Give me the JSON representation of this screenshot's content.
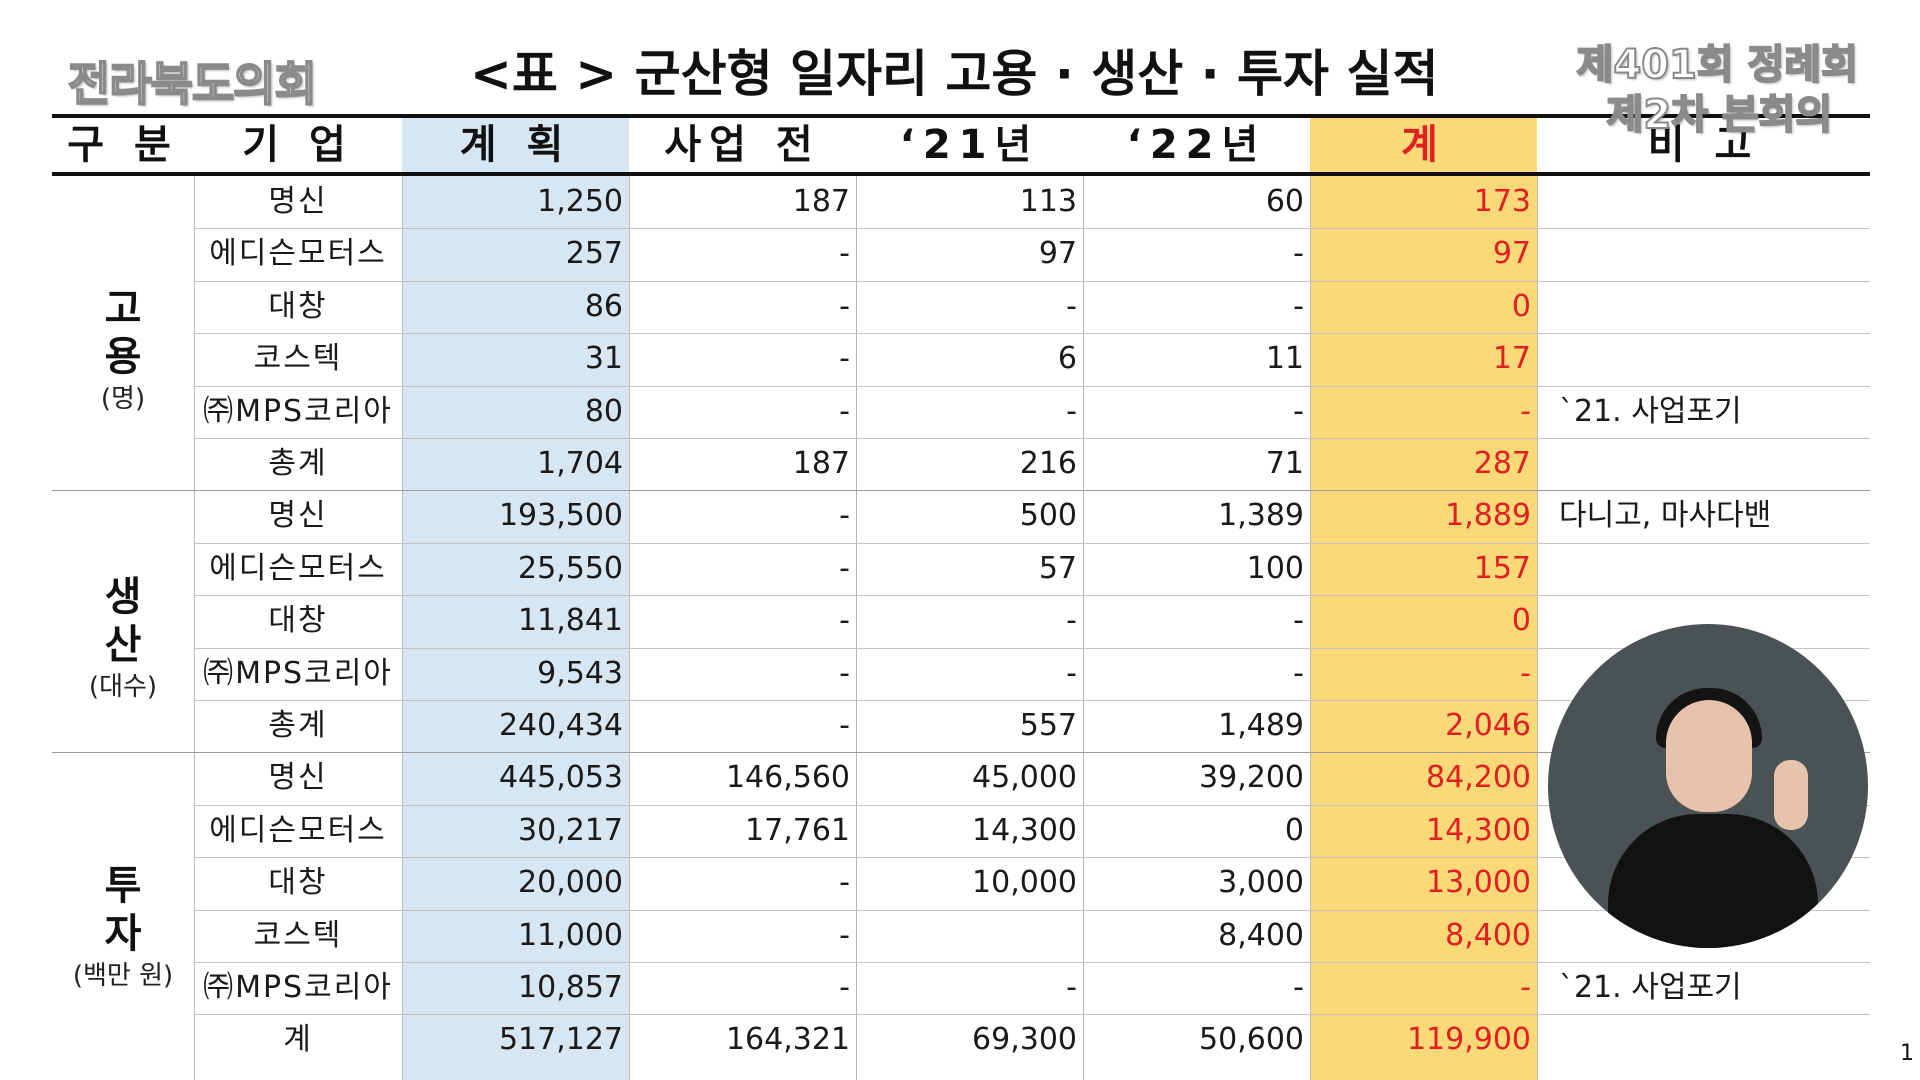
{
  "header": {
    "org_logo": "전라북도의회",
    "title": "<표 > 군산형 일자리 고용 · 생산 · 투자 실적",
    "session_line1": "제401회 정례회",
    "session_line2": "제2차 본회의"
  },
  "table": {
    "columns": [
      "구 분",
      "기 업",
      "계 획",
      "사업 전",
      "‘21년",
      "‘22년",
      "계",
      "비 고"
    ],
    "groups": [
      {
        "label": "고 용",
        "unit": "(명)",
        "rows": [
          {
            "company": "명신",
            "plan": "1,250",
            "before": "187",
            "y21": "113",
            "y22": "60",
            "total": "173",
            "note": ""
          },
          {
            "company": "에디슨모터스",
            "plan": "257",
            "before": "-",
            "y21": "97",
            "y22": "-",
            "total": "97",
            "note": ""
          },
          {
            "company": "대창",
            "plan": "86",
            "before": "-",
            "y21": "-",
            "y22": "-",
            "total": "0",
            "note": ""
          },
          {
            "company": "코스텍",
            "plan": "31",
            "before": "-",
            "y21": "6",
            "y22": "11",
            "total": "17",
            "note": ""
          },
          {
            "company": "㈜MPS코리아",
            "plan": "80",
            "before": "-",
            "y21": "-",
            "y22": "-",
            "total": "-",
            "note": "`21. 사업포기"
          },
          {
            "company": "총계",
            "plan": "1,704",
            "before": "187",
            "y21": "216",
            "y22": "71",
            "total": "287",
            "note": ""
          }
        ]
      },
      {
        "label": "생 산",
        "unit": "(대수)",
        "rows": [
          {
            "company": "명신",
            "plan": "193,500",
            "before": "-",
            "y21": "500",
            "y22": "1,389",
            "total": "1,889",
            "note": "다니고, 마사다밴"
          },
          {
            "company": "에디슨모터스",
            "plan": "25,550",
            "before": "-",
            "y21": "57",
            "y22": "100",
            "total": "157",
            "note": ""
          },
          {
            "company": "대창",
            "plan": "11,841",
            "before": "-",
            "y21": "-",
            "y22": "-",
            "total": "0",
            "note": ""
          },
          {
            "company": "㈜MPS코리아",
            "plan": "9,543",
            "before": "-",
            "y21": "-",
            "y22": "-",
            "total": "-",
            "note": ""
          },
          {
            "company": "총계",
            "plan": "240,434",
            "before": "-",
            "y21": "557",
            "y22": "1,489",
            "total": "2,046",
            "note": ""
          }
        ]
      },
      {
        "label": "투 자",
        "unit": "(백만 원)",
        "rows": [
          {
            "company": "명신",
            "plan": "445,053",
            "before": "146,560",
            "y21": "45,000",
            "y22": "39,200",
            "total": "84,200",
            "note": ""
          },
          {
            "company": "에디슨모터스",
            "plan": "30,217",
            "before": "17,761",
            "y21": "14,300",
            "y22": "0",
            "total": "14,300",
            "note": ""
          },
          {
            "company": "대창",
            "plan": "20,000",
            "before": "-",
            "y21": "10,000",
            "y22": "3,000",
            "total": "13,000",
            "note": ""
          },
          {
            "company": "코스텍",
            "plan": "11,000",
            "before": "-",
            "y21": "",
            "y22": "8,400",
            "total": "8,400",
            "note": ""
          },
          {
            "company": "㈜MPS코리아",
            "plan": "10,857",
            "before": "-",
            "y21": "-",
            "y22": "-",
            "total": "-",
            "note": "`21. 사업포기"
          },
          {
            "company": "계",
            "plan": "517,127",
            "before": "164,321",
            "y21": "69,300",
            "y22": "50,600",
            "total": "119,900",
            "note": ""
          }
        ]
      }
    ]
  },
  "page_number": "1",
  "colors": {
    "plan_column": "#d6e7f3",
    "total_column": "#fbd978",
    "total_text": "#e02020"
  }
}
